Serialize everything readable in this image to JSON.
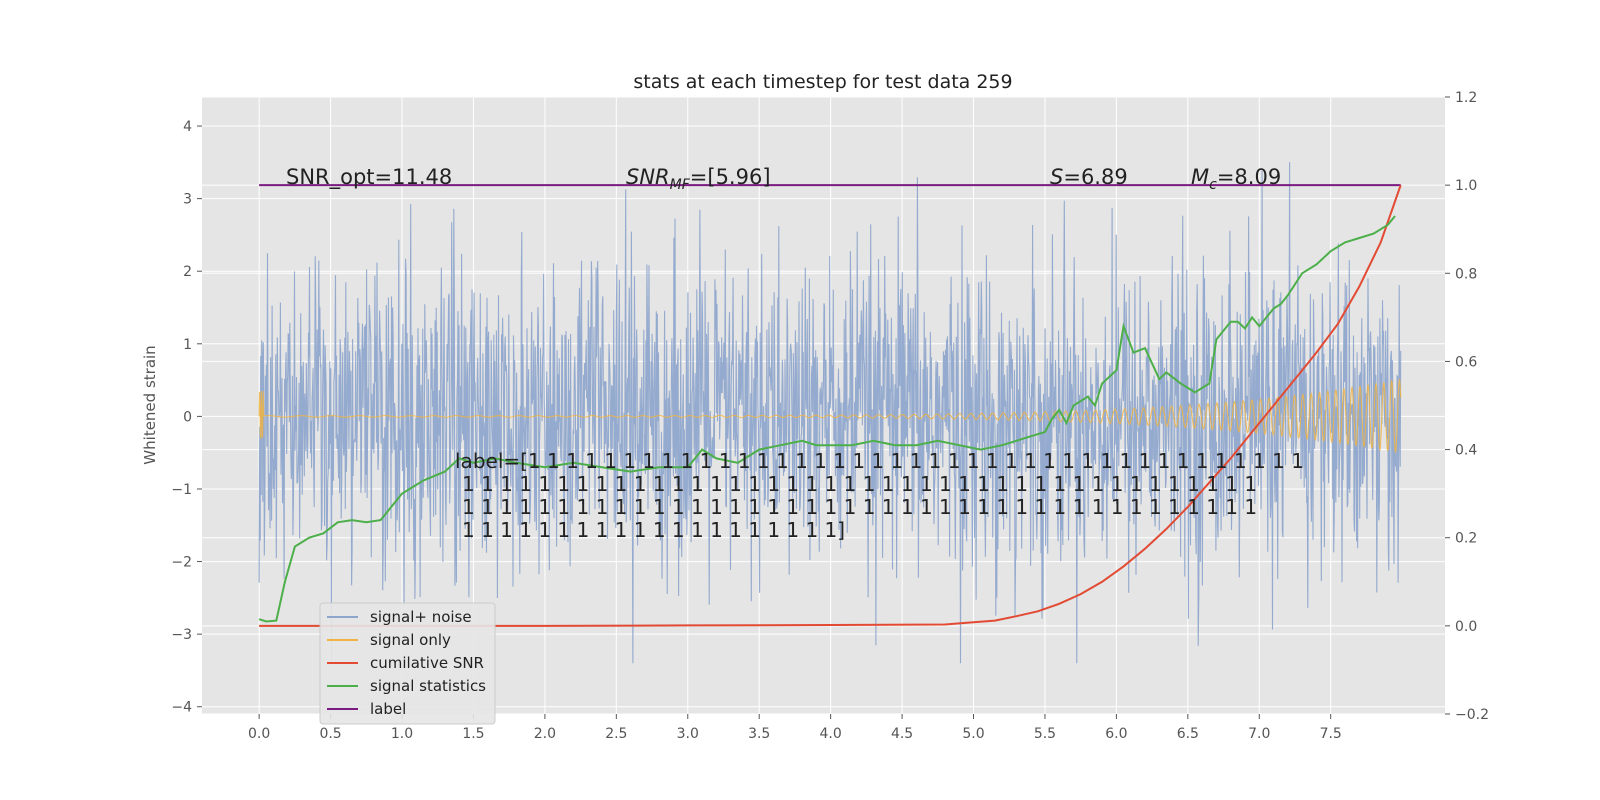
{
  "chart_data": {
    "type": "line",
    "title": "stats at each timestep for test data 259",
    "ylabel": "Whitened strain",
    "xlim": [
      -0.4,
      8.3
    ],
    "ylim": [
      -4.1,
      4.4
    ],
    "y2lim": [
      -0.2,
      1.2
    ],
    "x_ticks": [
      "0.0",
      "0.5",
      "1.0",
      "1.5",
      "2.0",
      "2.5",
      "3.0",
      "3.5",
      "4.0",
      "4.5",
      "5.0",
      "5.5",
      "6.0",
      "6.5",
      "7.0",
      "7.5"
    ],
    "y_ticks": [
      "4",
      "3",
      "2",
      "1",
      "0",
      "−1",
      "−2",
      "−3",
      "−4"
    ],
    "y2_ticks": [
      "1.2",
      "1.0",
      "0.8",
      "0.6",
      "0.4",
      "0.2",
      "0.0",
      "−0.2"
    ],
    "grid": true,
    "background": "#e5e5e5",
    "annotations": {
      "snr_opt": "SNR_opt=11.48",
      "snr_mf_sym": "SNR",
      "snr_mf_sub": "MF",
      "snr_mf_val": "=[5.96]",
      "s_sym": "S",
      "s_val": "=6.89",
      "mc_sym": "M",
      "mc_sub": "c",
      "mc_val": "=8.09"
    },
    "label_text": [
      "label=[1 1 1 1 1 1 1 1 1 1 1 1 1 1 1 1 1 1 1 1 1 1 1 1 1 1 1 1 1 1 1 1 1 1 1 1 1 1 1 1 1",
      "1 1 1 1 1 1 1 1 1 1 1 1 1 1 1 1 1 1 1 1 1 1 1 1 1 1 1 1 1 1 1 1 1 1 1 1 1 1 1 1 1 1",
      "1 1 1 1 1 1 1 1 1 1 1 1 1 1 1 1 1 1 1 1 1 1 1 1 1 1 1 1 1 1 1 1 1 1 1 1 1 1 1 1 1 1",
      "1 1 1 1 1 1 1 1 1 1 1 1 1 1 1 1 1 1 1 1]"
    ],
    "legend_placement": "lower-left",
    "series": [
      {
        "name": "signal+ noise",
        "color": "#8fa6cc",
        "axis": "left",
        "approx_amplitude": 1.4
      },
      {
        "name": "signal only",
        "color": "#f0b443",
        "axis": "left"
      },
      {
        "name": "cumilative SNR",
        "color": "#e24a33",
        "axis": "right",
        "x": [
          0.0,
          1.0,
          2.0,
          3.0,
          4.0,
          4.8,
          5.0,
          5.15,
          5.3,
          5.45,
          5.6,
          5.75,
          5.9,
          6.05,
          6.2,
          6.35,
          6.5,
          6.65,
          6.8,
          6.95,
          7.1,
          7.25,
          7.4,
          7.55,
          7.7,
          7.85,
          7.99
        ],
        "values": [
          0.0,
          0.0,
          0.0,
          0.001,
          0.002,
          0.003,
          0.008,
          0.012,
          0.022,
          0.033,
          0.05,
          0.072,
          0.1,
          0.135,
          0.175,
          0.22,
          0.27,
          0.325,
          0.38,
          0.44,
          0.5,
          0.56,
          0.62,
          0.685,
          0.77,
          0.87,
          1.0
        ]
      },
      {
        "name": "signal statistics",
        "color": "#4daf4a",
        "axis": "right",
        "x": [
          0.0,
          0.05,
          0.12,
          0.18,
          0.25,
          0.35,
          0.45,
          0.55,
          0.65,
          0.75,
          0.85,
          1.0,
          1.15,
          1.3,
          1.4,
          1.5,
          1.65,
          1.8,
          2.0,
          2.2,
          2.4,
          2.6,
          2.8,
          3.0,
          3.1,
          3.2,
          3.35,
          3.5,
          3.65,
          3.8,
          3.9,
          4.0,
          4.15,
          4.3,
          4.45,
          4.6,
          4.75,
          4.9,
          5.05,
          5.2,
          5.3,
          5.4,
          5.5,
          5.55,
          5.6,
          5.65,
          5.7,
          5.8,
          5.85,
          5.9,
          6.0,
          6.05,
          6.12,
          6.2,
          6.3,
          6.35,
          6.45,
          6.55,
          6.65,
          6.7,
          6.8,
          6.85,
          6.9,
          6.95,
          7.0,
          7.05,
          7.1,
          7.15,
          7.2,
          7.3,
          7.4,
          7.5,
          7.6,
          7.7,
          7.8,
          7.9,
          7.95
        ],
        "values": [
          0.015,
          0.01,
          0.012,
          0.1,
          0.18,
          0.2,
          0.21,
          0.235,
          0.24,
          0.235,
          0.24,
          0.3,
          0.33,
          0.35,
          0.38,
          0.37,
          0.38,
          0.37,
          0.36,
          0.37,
          0.36,
          0.35,
          0.36,
          0.36,
          0.4,
          0.38,
          0.37,
          0.4,
          0.41,
          0.42,
          0.41,
          0.41,
          0.41,
          0.42,
          0.41,
          0.41,
          0.42,
          0.41,
          0.4,
          0.41,
          0.42,
          0.43,
          0.44,
          0.47,
          0.49,
          0.46,
          0.5,
          0.52,
          0.5,
          0.55,
          0.58,
          0.68,
          0.62,
          0.63,
          0.56,
          0.575,
          0.55,
          0.53,
          0.55,
          0.65,
          0.69,
          0.69,
          0.675,
          0.7,
          0.68,
          0.7,
          0.72,
          0.73,
          0.75,
          0.8,
          0.82,
          0.85,
          0.87,
          0.88,
          0.89,
          0.91,
          0.93
        ]
      },
      {
        "name": "label",
        "color": "#7b1a80",
        "axis": "right",
        "x": [
          0.0,
          7.99
        ],
        "values": [
          1.0,
          1.0
        ]
      }
    ]
  }
}
